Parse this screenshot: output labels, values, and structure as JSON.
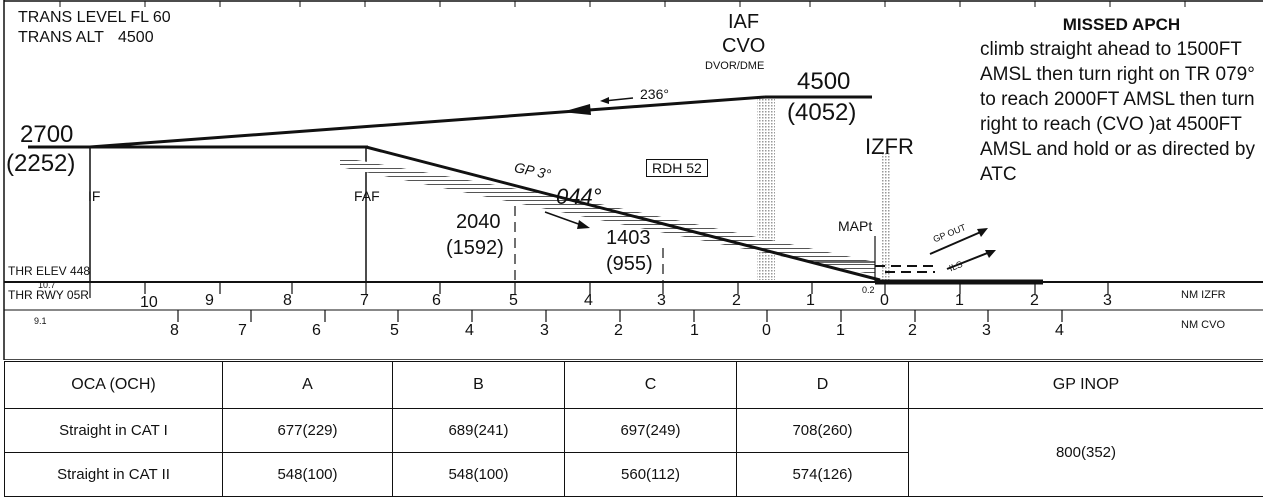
{
  "header": {
    "trans_level": "TRANS LEVEL FL 60",
    "trans_alt_label": "TRANS ALT",
    "trans_alt_value": "4500"
  },
  "iaf": {
    "label": "IAF",
    "name": "CVO",
    "type": "DVOR/DME",
    "alt": "4500",
    "alt_height": "(4052)",
    "course": "236°"
  },
  "if_fix": {
    "alt": "2700",
    "alt_height": "(2252)",
    "label": "IF"
  },
  "faf": {
    "label": "FAF"
  },
  "gp": {
    "label": "GP 3°",
    "course": "044°",
    "rdh": "RDH 52"
  },
  "checks": [
    {
      "alt": "2040",
      "height": "(1592)"
    },
    {
      "alt": "1403",
      "height": "(955)"
    }
  ],
  "izfr": {
    "label": "IZFR"
  },
  "mapt": {
    "label": "MAPt"
  },
  "gp_out": "GP OUT",
  "ils": "ILS",
  "thr_elev": "THR ELEV 448",
  "scale_izfr": {
    "label": "THR RWY 05R",
    "unit": "NM IZFR",
    "start_value": "10.7",
    "numbers": [
      "10",
      "9",
      "8",
      "7",
      "6",
      "5",
      "4",
      "3",
      "2",
      "1",
      "0",
      "1",
      "2",
      "3"
    ],
    "mapt_dist": "0.2"
  },
  "scale_cvo": {
    "start_value": "9.1",
    "unit": "NM CVO",
    "numbers": [
      "8",
      "7",
      "6",
      "5",
      "4",
      "3",
      "2",
      "1",
      "0",
      "1",
      "2",
      "3",
      "4"
    ]
  },
  "missed": {
    "title": "MISSED APCH",
    "text": "climb straight ahead to 1500FT AMSL then turn right on TR 079° to reach 2000FT AMSL then turn right to reach (CVO )at 4500FT AMSL and  hold or as directed by ATC"
  },
  "minima": {
    "header": [
      "OCA (OCH)",
      "A",
      "B",
      "C",
      "D",
      "GP INOP"
    ],
    "rows": [
      {
        "label": "Straight in CAT I",
        "values": [
          "677(229)",
          "689(241)",
          "697(249)",
          "708(260)"
        ]
      },
      {
        "label": "Straight in CAT II",
        "values": [
          "548(100)",
          "548(100)",
          "560(112)",
          "574(126)"
        ]
      }
    ],
    "gp_inop_value": "800(352)"
  }
}
